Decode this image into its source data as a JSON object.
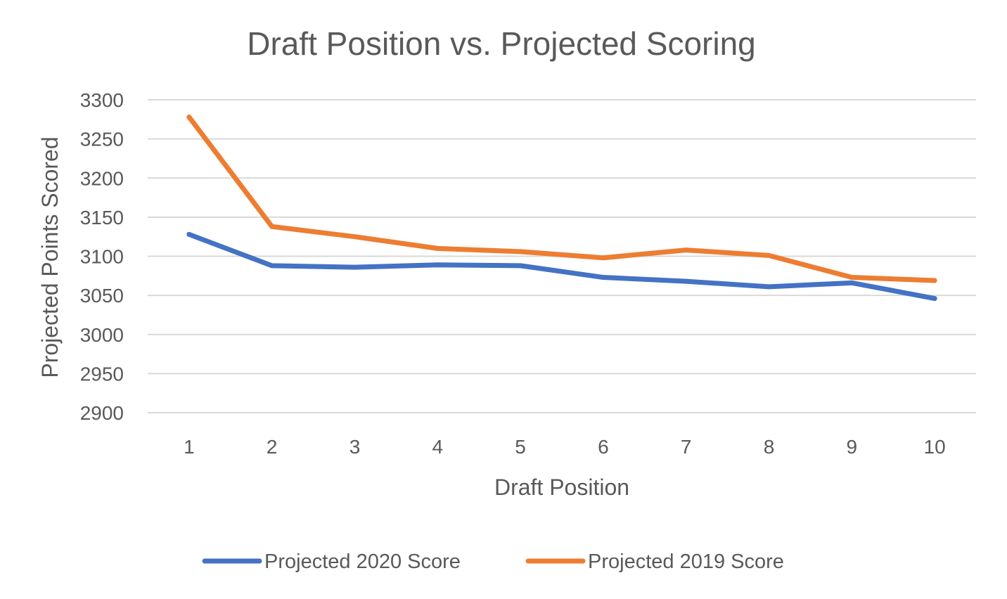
{
  "chart_data": {
    "type": "line",
    "title": "Draft Position vs. Projected Scoring",
    "xlabel": "Draft Position",
    "ylabel": "Projected Points Scored",
    "categories": [
      "1",
      "2",
      "3",
      "4",
      "5",
      "6",
      "7",
      "8",
      "9",
      "10"
    ],
    "ylim": [
      2900,
      3300
    ],
    "yticks": [
      "2900",
      "2950",
      "3000",
      "3050",
      "3100",
      "3150",
      "3200",
      "3250",
      "3300"
    ],
    "grid": true,
    "legend_position": "bottom",
    "series": [
      {
        "name": "Projected 2020 Score",
        "color": "#4472c4",
        "values": [
          3128,
          3088,
          3086,
          3089,
          3088,
          3073,
          3068,
          3061,
          3066,
          3046
        ]
      },
      {
        "name": "Projected 2019 Score",
        "color": "#ed7d31",
        "values": [
          3278,
          3138,
          3125,
          3110,
          3106,
          3098,
          3108,
          3101,
          3073,
          3069
        ]
      }
    ]
  }
}
